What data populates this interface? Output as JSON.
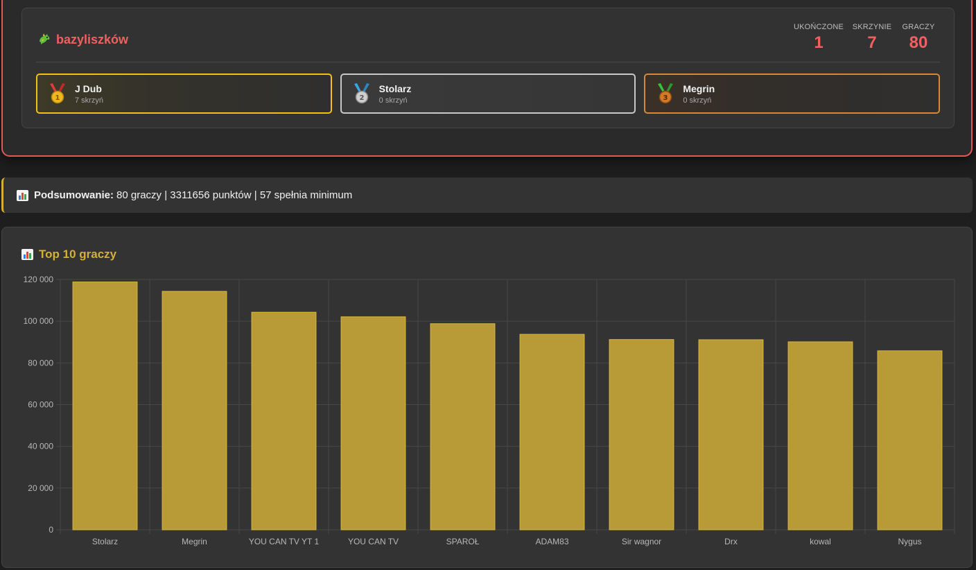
{
  "boss": {
    "name": "bazyliszków",
    "icon": "dragon-icon",
    "stats": [
      {
        "label": "UKOŃCZONE",
        "value": "1"
      },
      {
        "label": "SKRZYNIE",
        "value": "7"
      },
      {
        "label": "GRACZY",
        "value": "80"
      }
    ],
    "podium": [
      {
        "name": "J Dub",
        "chests": "7 skrzyń",
        "medal": "gold-medal-icon",
        "color": "#f2c21b"
      },
      {
        "name": "Stolarz",
        "chests": "0 skrzyń",
        "medal": "silver-medal-icon",
        "color": "#c9c9c9"
      },
      {
        "name": "Megrin",
        "chests": "0 skrzyń",
        "medal": "bronze-medal-icon",
        "color": "#d48a3a"
      }
    ]
  },
  "summary": {
    "label": "Podsumowanie:",
    "text": "80 graczy | 3311656 punktów | 57 spełnia minimum"
  },
  "chart_card": {
    "title": "Top 10 graczy"
  },
  "chart_data": {
    "type": "bar",
    "categories": [
      "Stolarz",
      "Megrin",
      "YOU CAN TV YT 1",
      "YOU CAN TV",
      "SPAROŁ",
      "ADAM83",
      "Sir wagnor",
      "Drx",
      "kowal",
      "Nygus"
    ],
    "values": [
      118800,
      114300,
      104300,
      102100,
      98800,
      93700,
      91200,
      91100,
      90100,
      85800
    ],
    "ylim": [
      0,
      120000
    ],
    "yticks": [
      "0",
      "20 000",
      "40 000",
      "60 000",
      "80 000",
      "100 000",
      "120 000"
    ],
    "ytick_values": [
      0,
      20000,
      40000,
      60000,
      80000,
      100000,
      120000
    ],
    "grid": true,
    "bar_color": "#b89a36"
  }
}
